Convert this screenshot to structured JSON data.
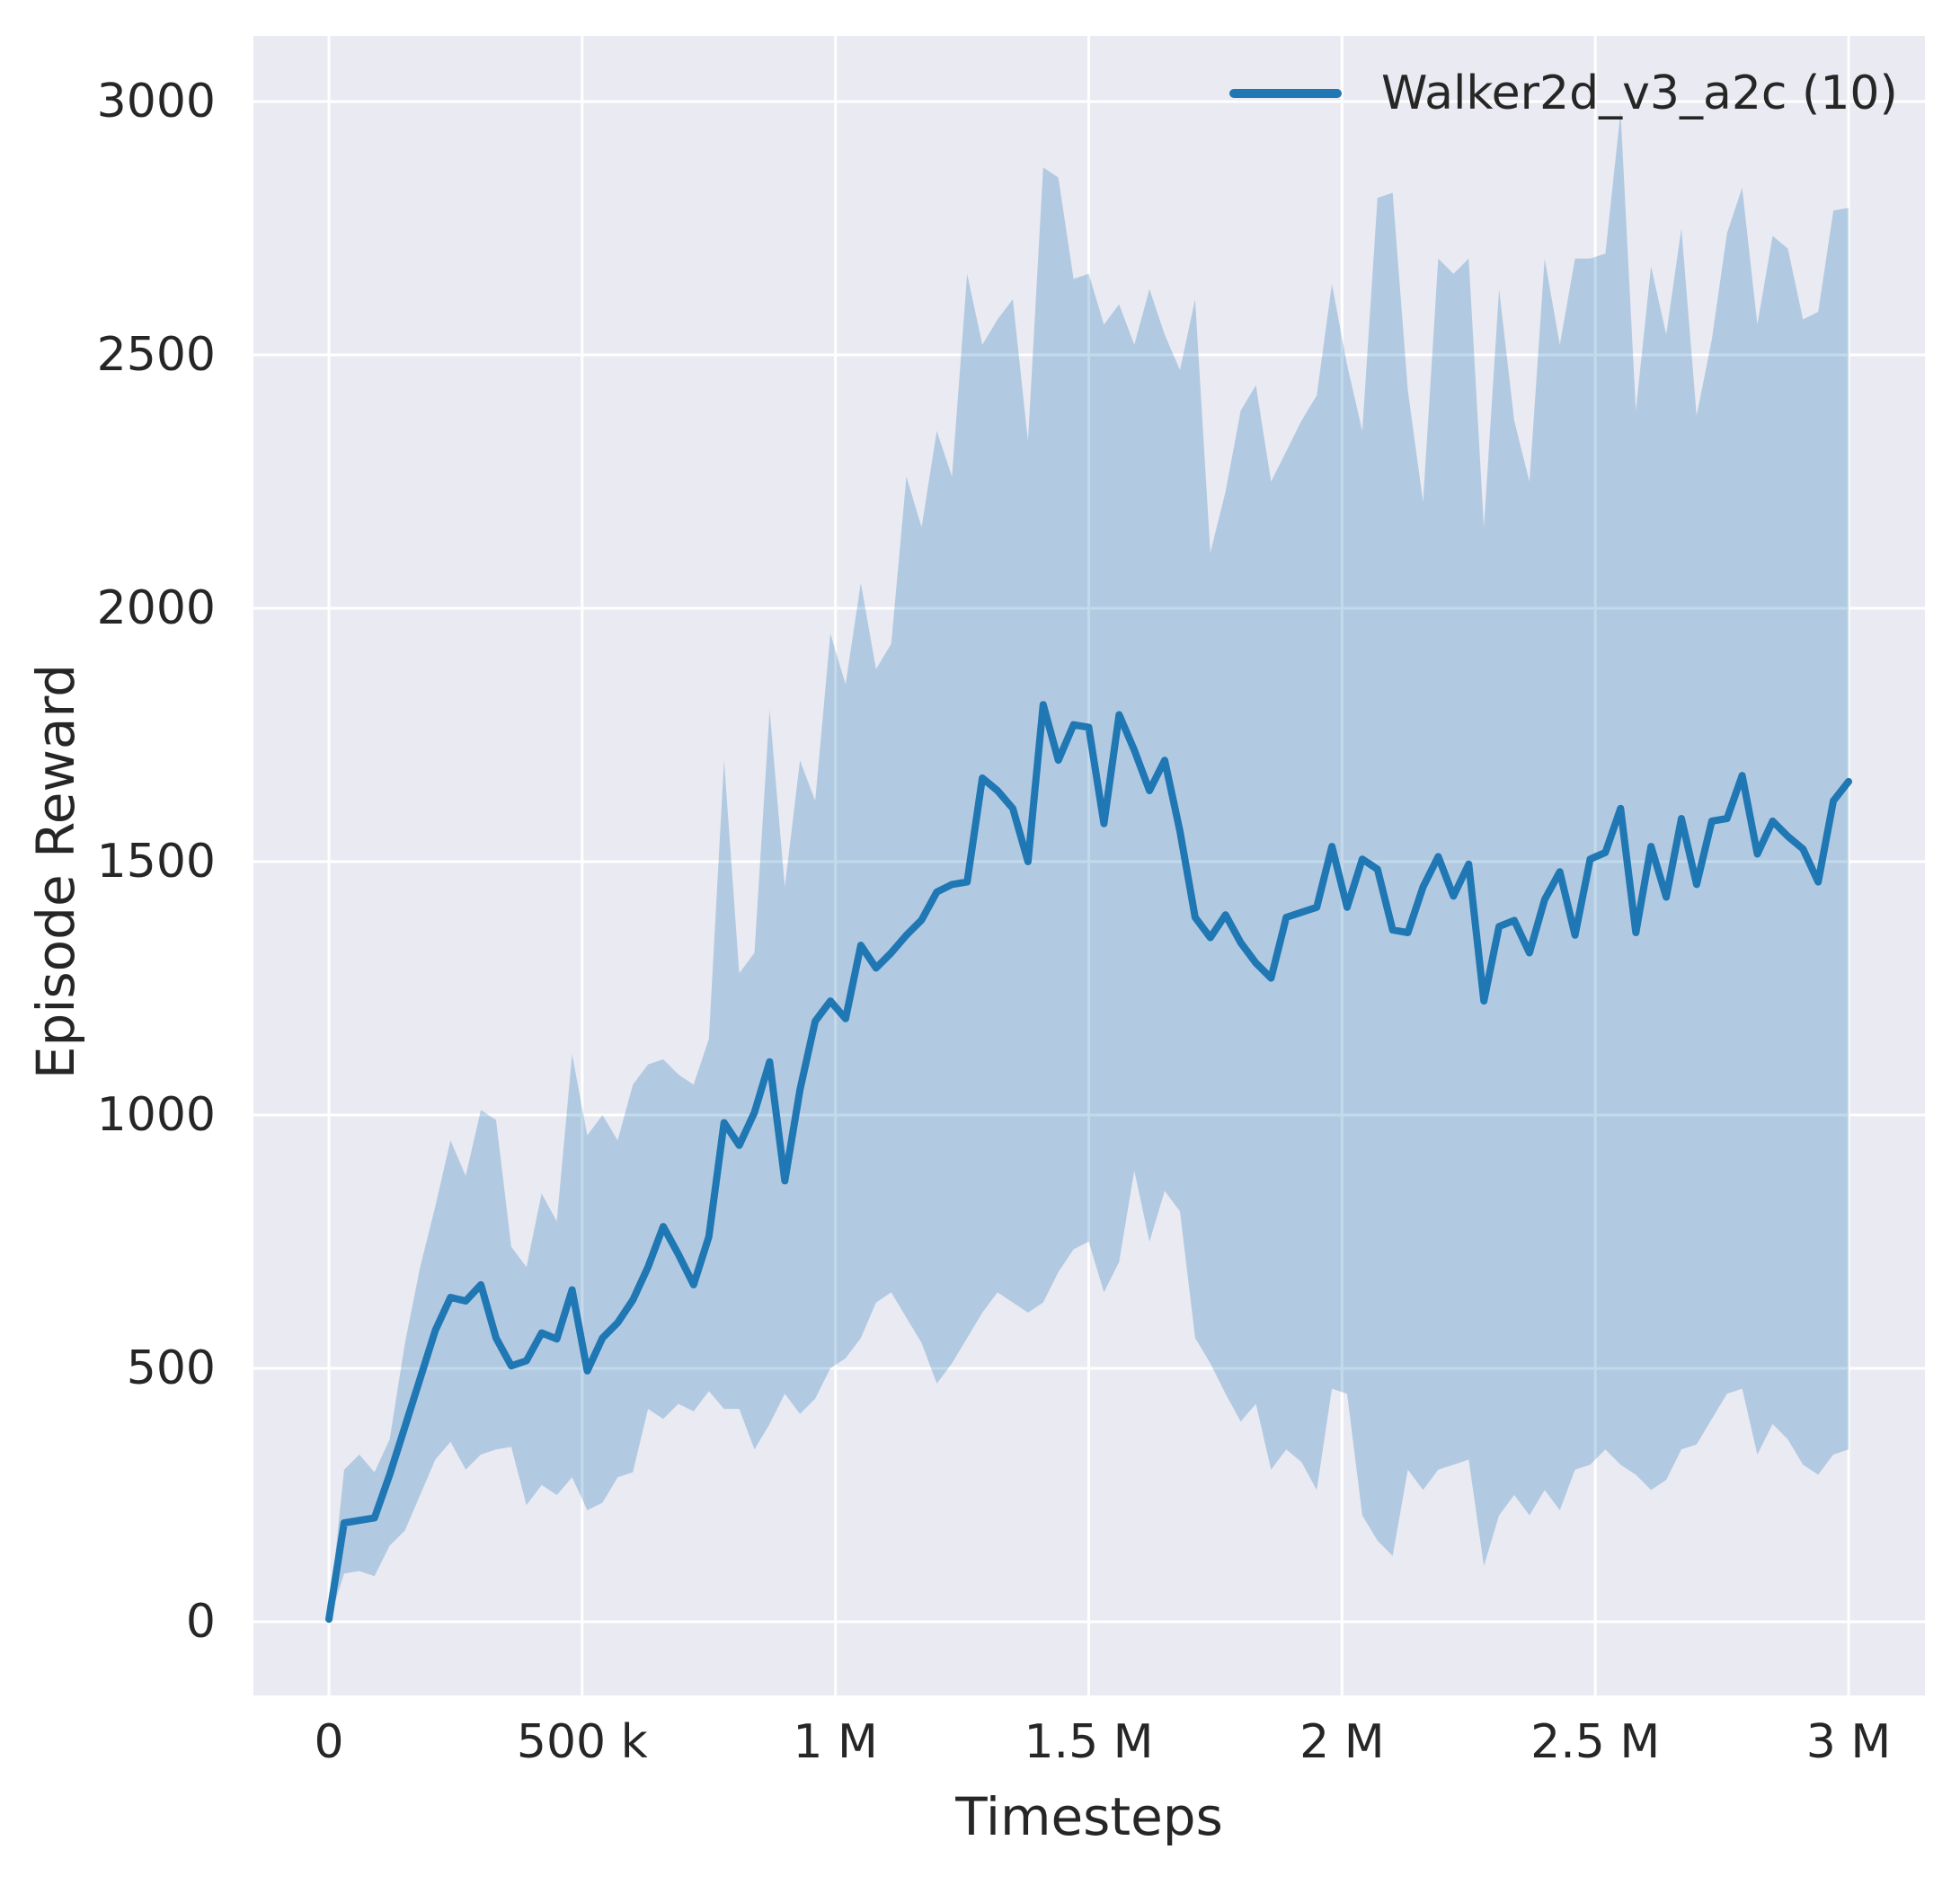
{
  "colors": {
    "line": "#1f77b4",
    "band_fill": "#1f77b4",
    "band_alpha": 0.27,
    "panel_bg": "#eaeaf2",
    "grid": "#ffffff",
    "text": "#262626",
    "figure_bg": "#ffffff"
  },
  "chart_data": {
    "type": "line",
    "title": "",
    "xlabel": "Timesteps",
    "ylabel": "Episode Reward",
    "grid": true,
    "legend_position": "upper right",
    "legend": {
      "label": "Walker2d_v3_a2c (10)",
      "color": "#1f77b4"
    },
    "xlim": [
      -149000,
      3150000
    ],
    "ylim": [
      -145,
      3129
    ],
    "xticks": [
      {
        "value": 0,
        "label": "0"
      },
      {
        "value": 500000,
        "label": "500 k"
      },
      {
        "value": 1000000,
        "label": "1 M"
      },
      {
        "value": 1500000,
        "label": "1.5 M"
      },
      {
        "value": 2000000,
        "label": "2 M"
      },
      {
        "value": 2500000,
        "label": "2.5 M"
      },
      {
        "value": 3000000,
        "label": "3 M"
      }
    ],
    "yticks": [
      {
        "value": 0,
        "label": "0"
      },
      {
        "value": 500,
        "label": "500"
      },
      {
        "value": 1000,
        "label": "1000"
      },
      {
        "value": 1500,
        "label": "1500"
      },
      {
        "value": 2000,
        "label": "2000"
      },
      {
        "value": 2500,
        "label": "2500"
      },
      {
        "value": 3000,
        "label": "3000"
      }
    ],
    "series": [
      {
        "name": "Walker2d_v3_a2c (10)",
        "color": "#1f77b4",
        "x": [
          0,
          30000,
          60000,
          90000,
          120000,
          150000,
          180000,
          210000,
          240000,
          270000,
          300000,
          330000,
          360000,
          390000,
          420000,
          450000,
          480000,
          510000,
          540000,
          570000,
          600000,
          630000,
          660000,
          690000,
          720000,
          750000,
          780000,
          810000,
          840000,
          870000,
          900000,
          930000,
          960000,
          990000,
          1020000,
          1050000,
          1080000,
          1110000,
          1140000,
          1170000,
          1200000,
          1230000,
          1260000,
          1290000,
          1320000,
          1350000,
          1380000,
          1410000,
          1440000,
          1470000,
          1500000,
          1530000,
          1560000,
          1590000,
          1620000,
          1650000,
          1680000,
          1710000,
          1740000,
          1770000,
          1800000,
          1830000,
          1860000,
          1890000,
          1920000,
          1950000,
          1980000,
          2010000,
          2040000,
          2070000,
          2100000,
          2130000,
          2160000,
          2190000,
          2220000,
          2250000,
          2280000,
          2310000,
          2340000,
          2370000,
          2400000,
          2430000,
          2460000,
          2490000,
          2520000,
          2550000,
          2580000,
          2610000,
          2640000,
          2670000,
          2700000,
          2730000,
          2760000,
          2790000,
          2820000,
          2850000,
          2880000,
          2910000,
          2940000,
          2970000,
          3000000
        ],
        "mean": [
          5,
          195,
          200,
          205,
          290,
          385,
          480,
          575,
          640,
          633,
          665,
          560,
          505,
          515,
          570,
          558,
          655,
          495,
          560,
          590,
          635,
          700,
          780,
          725,
          665,
          760,
          985,
          940,
          1005,
          1105,
          870,
          1050,
          1185,
          1225,
          1190,
          1335,
          1290,
          1320,
          1355,
          1385,
          1440,
          1455,
          1460,
          1665,
          1640,
          1605,
          1500,
          1810,
          1700,
          1770,
          1765,
          1575,
          1790,
          1720,
          1640,
          1700,
          1560,
          1390,
          1350,
          1395,
          1340,
          1300,
          1270,
          1390,
          1400,
          1410,
          1530,
          1410,
          1505,
          1485,
          1365,
          1360,
          1450,
          1510,
          1432,
          1495,
          1225,
          1372,
          1384,
          1320,
          1425,
          1480,
          1355,
          1505,
          1518,
          1605,
          1360,
          1530,
          1430,
          1585,
          1455,
          1580,
          1585,
          1670,
          1515,
          1580,
          1550,
          1525,
          1460,
          1620,
          1658
        ],
        "upper": [
          10,
          300,
          330,
          295,
          360,
          550,
          700,
          820,
          950,
          880,
          1010,
          990,
          740,
          700,
          845,
          790,
          1120,
          960,
          1000,
          950,
          1060,
          1100,
          1110,
          1080,
          1060,
          1150,
          1700,
          1280,
          1320,
          1800,
          1450,
          1700,
          1620,
          1950,
          1850,
          2050,
          1880,
          1930,
          2260,
          2160,
          2350,
          2260,
          2660,
          2520,
          2570,
          2610,
          2330,
          2870,
          2850,
          2650,
          2660,
          2560,
          2600,
          2520,
          2630,
          2540,
          2470,
          2610,
          2110,
          2230,
          2390,
          2440,
          2250,
          2310,
          2370,
          2420,
          2640,
          2480,
          2350,
          2810,
          2820,
          2430,
          2210,
          2690,
          2660,
          2690,
          2160,
          2630,
          2370,
          2250,
          2690,
          2520,
          2690,
          2690,
          2700,
          2980,
          2390,
          2675,
          2540,
          2750,
          2380,
          2530,
          2740,
          2830,
          2560,
          2735,
          2710,
          2570,
          2585,
          2785,
          2790
        ],
        "lower": [
          0,
          95,
          100,
          90,
          150,
          180,
          250,
          320,
          355,
          300,
          330,
          340,
          345,
          230,
          270,
          250,
          285,
          220,
          235,
          285,
          295,
          420,
          400,
          430,
          415,
          455,
          420,
          420,
          340,
          390,
          450,
          410,
          440,
          500,
          520,
          560,
          630,
          650,
          600,
          550,
          470,
          510,
          560,
          610,
          650,
          630,
          610,
          630,
          690,
          735,
          750,
          650,
          710,
          890,
          750,
          850,
          810,
          560,
          510,
          450,
          395,
          430,
          300,
          340,
          315,
          260,
          460,
          450,
          210,
          160,
          130,
          300,
          260,
          300,
          310,
          320,
          110,
          210,
          250,
          210,
          260,
          220,
          300,
          310,
          340,
          310,
          290,
          260,
          280,
          340,
          350,
          400,
          450,
          460,
          330,
          390,
          360,
          310,
          290,
          330,
          340
        ]
      }
    ]
  }
}
